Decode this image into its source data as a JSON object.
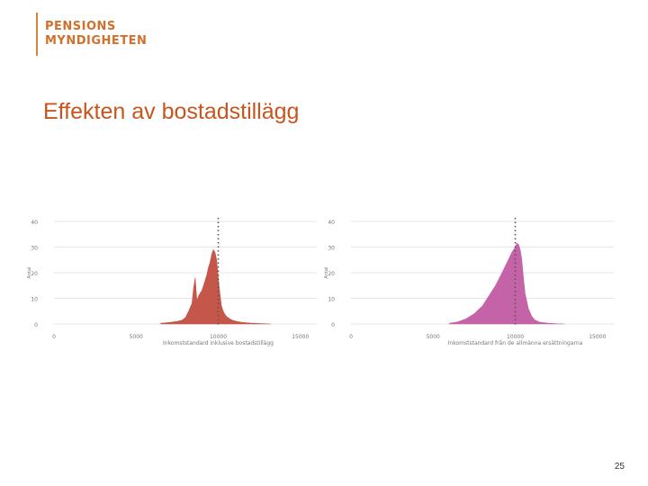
{
  "logo": {
    "line1": "PENSIONS",
    "line2": "MYNDIGHETEN",
    "color": "#d36f2a"
  },
  "slide": {
    "title": "Effekten av bostadstillägg",
    "page_number": "25"
  },
  "chart_data": [
    {
      "type": "area",
      "color": "#c5574a",
      "xlabel": "Inkomststandard inklusive bostadstillägg",
      "ylabel": "Antal",
      "xlim": [
        0,
        16000
      ],
      "ylim": [
        0,
        40
      ],
      "yticks": [
        "40",
        "30",
        "20",
        "10",
        "0"
      ],
      "xticks": [
        "0",
        "5000",
        "10000",
        "15000"
      ],
      "reference_line_x": 10000,
      "grid": true,
      "x": [
        6500,
        7000,
        7500,
        7800,
        8000,
        8200,
        8400,
        8500,
        8600,
        8700,
        8800,
        8900,
        9000,
        9100,
        9200,
        9300,
        9400,
        9500,
        9600,
        9700,
        9800,
        9900,
        10000,
        10100,
        10200,
        10300,
        10400,
        10500,
        10600,
        10700,
        10800,
        10900,
        11000,
        11200,
        11400,
        11700,
        12000,
        12400,
        12800,
        13200
      ],
      "y": [
        0.3,
        0.6,
        1,
        1.5,
        2.5,
        5,
        8,
        14,
        18,
        9,
        11,
        12,
        13,
        15,
        17,
        19,
        22,
        24,
        27,
        29,
        28,
        25,
        18,
        12,
        7,
        5,
        3.8,
        3,
        2.5,
        2,
        1.7,
        1.4,
        1.2,
        0.9,
        0.7,
        0.5,
        0.3,
        0.2,
        0.1,
        0
      ]
    },
    {
      "type": "area",
      "color": "#c563a8",
      "xlabel": "Inkomststandard från de allmänna ersättningarna",
      "ylabel": "Antal",
      "xlim": [
        0,
        16000
      ],
      "ylim": [
        0,
        40
      ],
      "yticks": [
        "40",
        "30",
        "20",
        "10",
        "0"
      ],
      "xticks": [
        "0",
        "5000",
        "10000",
        "15000"
      ],
      "reference_line_x": 10000,
      "grid": true,
      "x": [
        6000,
        6500,
        7000,
        7500,
        8000,
        8400,
        8800,
        9200,
        9500,
        9800,
        10000,
        10100,
        10200,
        10300,
        10400,
        10500,
        10600,
        10800,
        11000,
        11200,
        11500,
        12000,
        12500,
        13000
      ],
      "y": [
        0.3,
        0.8,
        2,
        4,
        7,
        11,
        15,
        20,
        24,
        28,
        30,
        31.5,
        31,
        29,
        25,
        18,
        12,
        6,
        3,
        1.5,
        0.7,
        0.3,
        0.1,
        0
      ]
    }
  ]
}
